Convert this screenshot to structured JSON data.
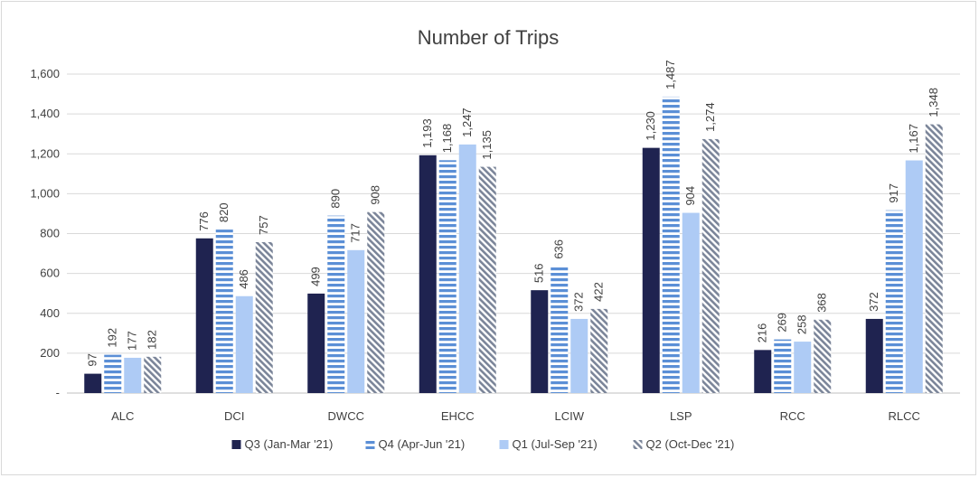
{
  "chart_data": {
    "type": "bar",
    "title": "Number of Trips",
    "xlabel": "",
    "ylabel": "",
    "categories": [
      "ALC",
      "DCI",
      "DWCC",
      "EHCC",
      "LCIW",
      "LSP",
      "RCC",
      "RLCC"
    ],
    "series": [
      {
        "name": "Q3 (Jan-Mar '21)",
        "values": [
          97,
          776,
          499,
          1193,
          516,
          1230,
          216,
          372
        ],
        "color": "#1f2350",
        "pattern": "solid"
      },
      {
        "name": "Q4 (Apr-Jun '21)",
        "values": [
          192,
          820,
          890,
          1168,
          636,
          1487,
          269,
          917
        ],
        "color": "#5b8fd6",
        "pattern": "horizontal-stripes"
      },
      {
        "name": "Q1 (Jul-Sep '21)",
        "values": [
          177,
          486,
          717,
          1247,
          372,
          904,
          258,
          1167
        ],
        "color": "#aecbf5",
        "pattern": "solid"
      },
      {
        "name": "Q2 (Oct-Dec '21)",
        "values": [
          182,
          757,
          908,
          1135,
          422,
          1274,
          368,
          1348
        ],
        "color": "#7b8599",
        "pattern": "diagonal-stripes"
      }
    ],
    "ylim": [
      0,
      1600
    ],
    "ytick_step": 200,
    "ytick_labels": [
      "-",
      "200",
      "400",
      "600",
      "800",
      "1,000",
      "1,200",
      "1,400",
      "1,600"
    ],
    "grid": true,
    "legend_position": "bottom"
  }
}
